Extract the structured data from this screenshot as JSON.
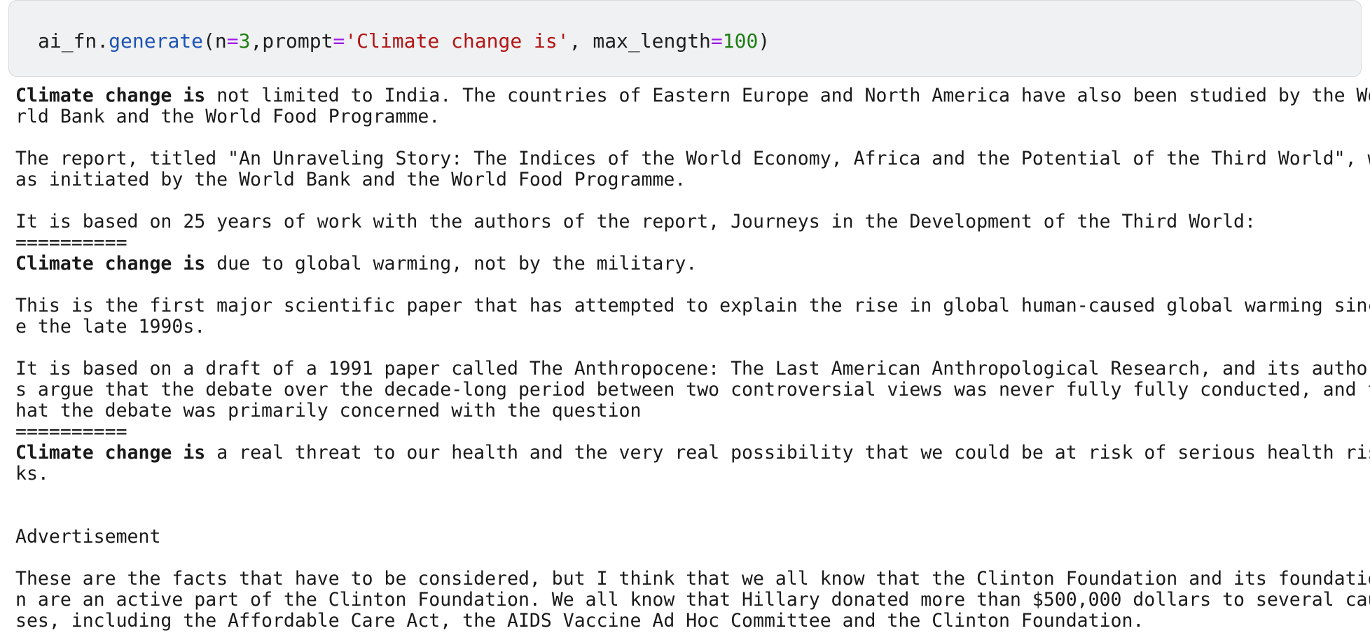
{
  "code_cell": {
    "tokens": [
      {
        "t": "ai_fn.",
        "c": "plain"
      },
      {
        "t": "generate",
        "c": "fn"
      },
      {
        "t": "(n",
        "c": "plain"
      },
      {
        "t": "=",
        "c": "op"
      },
      {
        "t": "3",
        "c": "num"
      },
      {
        "t": ",prompt",
        "c": "plain"
      },
      {
        "t": "=",
        "c": "op"
      },
      {
        "t": "'Climate change is'",
        "c": "str"
      },
      {
        "t": ", max_length",
        "c": "plain"
      },
      {
        "t": "=",
        "c": "op"
      },
      {
        "t": "100",
        "c": "num"
      },
      {
        "t": ")",
        "c": "plain"
      }
    ]
  },
  "output": {
    "lines": [
      {
        "bold": "Climate change is",
        "text": " not limited to India. The countries of Eastern Europe and North America have also been studied by the Wo"
      },
      {
        "bold": "",
        "text": "rld Bank and the World Food Programme."
      },
      {
        "bold": "",
        "text": ""
      },
      {
        "bold": "",
        "text": "The report, titled \"An Unraveling Story: The Indices of the World Economy, Africa and the Potential of the Third World\", w"
      },
      {
        "bold": "",
        "text": "as initiated by the World Bank and the World Food Programme."
      },
      {
        "bold": "",
        "text": ""
      },
      {
        "bold": "",
        "text": "It is based on 25 years of work with the authors of the report, Journeys in the Development of the Third World:"
      },
      {
        "bold": "",
        "text": "=========="
      },
      {
        "bold": "Climate change is",
        "text": " due to global warming, not by the military."
      },
      {
        "bold": "",
        "text": ""
      },
      {
        "bold": "",
        "text": "This is the first major scientific paper that has attempted to explain the rise in global human-caused global warming sinc"
      },
      {
        "bold": "",
        "text": "e the late 1990s."
      },
      {
        "bold": "",
        "text": ""
      },
      {
        "bold": "",
        "text": "It is based on a draft of a 1991 paper called The Anthropocene: The Last American Anthropological Research, and its author"
      },
      {
        "bold": "",
        "text": "s argue that the debate over the decade-long period between two controversial views was never fully fully conducted, and t"
      },
      {
        "bold": "",
        "text": "hat the debate was primarily concerned with the question"
      },
      {
        "bold": "",
        "text": "=========="
      },
      {
        "bold": "Climate change is",
        "text": " a real threat to our health and the very real possibility that we could be at risk of serious health ris"
      },
      {
        "bold": "",
        "text": "ks."
      },
      {
        "bold": "",
        "text": ""
      },
      {
        "bold": "",
        "text": ""
      },
      {
        "bold": "",
        "text": "Advertisement"
      },
      {
        "bold": "",
        "text": ""
      },
      {
        "bold": "",
        "text": "These are the facts that have to be considered, but I think that we all know that the Clinton Foundation and its foundatio"
      },
      {
        "bold": "",
        "text": "n are an active part of the Clinton Foundation. We all know that Hillary donated more than $500,000 dollars to several cau"
      },
      {
        "bold": "",
        "text": "ses, including the Affordable Care Act, the AIDS Vaccine Ad Hoc Committee and the Clinton Foundation."
      }
    ]
  }
}
